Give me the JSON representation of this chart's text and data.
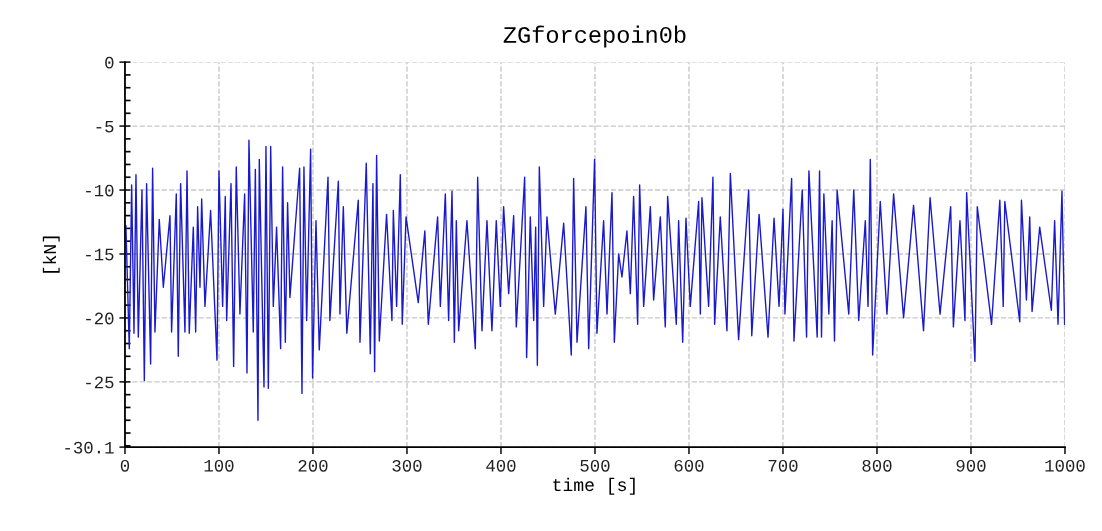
{
  "chart_data": {
    "type": "line",
    "title": "ZGforcepoin0b",
    "xlabel": "time [s]",
    "ylabel": "[kN]",
    "xlim": [
      0,
      1000
    ],
    "xticks": [
      0,
      100,
      200,
      300,
      400,
      500,
      600,
      700,
      800,
      900,
      1000
    ],
    "ylim": [
      -30.1,
      0
    ],
    "yticks": [
      0,
      -5,
      -10,
      -15,
      -20,
      -25,
      -30.1
    ],
    "grid": true,
    "marker": "none",
    "line_style": "solid",
    "series": [
      {
        "color": "#1a1acc",
        "x": [
          1,
          4.6,
          7.1,
          9.6,
          11.7,
          14.2,
          18.1,
          20.6,
          23,
          27.3,
          29.4,
          31.9,
          36.5,
          40.8,
          47.9,
          49.6,
          54.6,
          56.7,
          59.2,
          63.8,
          66,
          68.4,
          72.7,
          75.2,
          77.3,
          79.8,
          81.6,
          85.1,
          91.1,
          97.9,
          100,
          103.9,
          106.7,
          108.2,
          112.8,
          115.6,
          118.4,
          122.3,
          127.3,
          129.8,
          131.9,
          136.5,
          138.7,
          141.5,
          142.9,
          147.9,
          150,
          152.5,
          155,
          157.8,
          161.3,
          165.6,
          167.7,
          170.6,
          173,
          175.5,
          185.8,
          188.3,
          190.4,
          193.3,
          197.5,
          199.6,
          203.2,
          206.7,
          216,
          218,
          227,
          228.7,
          232.3,
          236,
          248.2,
          250,
          256.7,
          261,
          263.8,
          265.6,
          267.7,
          270.6,
          278.3,
          284,
          285.5,
          289,
          292.9,
          295,
          299,
          312,
          319,
          322.7,
          332.6,
          335.5,
          340.8,
          344.3,
          347.9,
          350.4,
          352.5,
          355,
          363.8,
          372.7,
          375.2,
          379.8,
          385.1,
          390.4,
          395,
          399.3,
          402.8,
          408.2,
          413.5,
          416.3,
          425.2,
          427.3,
          431.2,
          434.8,
          436.9,
          438.7,
          440.8,
          445.4,
          448.9,
          457.8,
          466.7,
          474.8,
          477.3,
          480.9,
          490.4,
          493.3,
          499.6,
          502.1,
          509.2,
          512.8,
          518.1,
          520.6,
          525.2,
          528.7,
          534,
          537.6,
          541.1,
          545.4,
          547.5,
          551.8,
          558.9,
          562.4,
          569.5,
          574.8,
          577.3,
          586.5,
          589,
          593.3,
          596.8,
          601.4,
          610.3,
          612.1,
          613.8,
          620.9,
          625.5,
          627.3,
          633.3,
          640.4,
          644,
          652.8,
          663.5,
          666.8,
          674.6,
          684.1,
          690.5,
          695.8,
          700,
          702.1,
          709.2,
          711.7,
          720.5,
          725.1,
          727.6,
          736.4,
          738.9,
          741,
          743.5,
          748.8,
          752.3,
          754.8,
          757.6,
          770,
          775.3,
          780.6,
          787.6,
          790.5,
          792.9,
          795.4,
          803.5,
          810.6,
          817.7,
          828.3,
          838.9,
          849.5,
          856.5,
          867.1,
          878.4,
          881.3,
          888.3,
          893.6,
          895.4,
          904.2,
          906.7,
          921.9,
          930.7,
          934.3,
          936,
          951.9,
          953.7,
          959,
          962.5,
          965,
          973.1,
          985.5,
          989,
          992.6,
          996.8,
          999.6
        ],
        "values": [
          -12.8,
          -22.4,
          -9.6,
          -21.2,
          -8.8,
          -21.5,
          -10,
          -24.9,
          -9.5,
          -23.6,
          -8.3,
          -21.1,
          -12.3,
          -17.6,
          -12,
          -21.1,
          -10.3,
          -23,
          -9.5,
          -21.1,
          -8.5,
          -21.2,
          -12.9,
          -21.1,
          -11.3,
          -17.6,
          -10.7,
          -19.1,
          -11.6,
          -23.3,
          -8.5,
          -19.1,
          -10.5,
          -20.2,
          -9.5,
          -23.8,
          -8.2,
          -19.7,
          -10.3,
          -24.3,
          -6.1,
          -21.1,
          -8.4,
          -28,
          -7.6,
          -25.4,
          -6.6,
          -25.5,
          -6.6,
          -19.1,
          -12.9,
          -22.4,
          -8.2,
          -21.9,
          -11,
          -18.4,
          -8.3,
          -25.9,
          -8.2,
          -20.2,
          -6.8,
          -24.7,
          -12.4,
          -22.5,
          -9,
          -20.2,
          -9.3,
          -19.7,
          -11.3,
          -21.2,
          -10.8,
          -21.9,
          -7.9,
          -22.8,
          -9.5,
          -24.2,
          -7.3,
          -21.8,
          -11.9,
          -20.2,
          -11.6,
          -19.1,
          -8.8,
          -20.5,
          -12.1,
          -18.8,
          -13.2,
          -20.5,
          -12.1,
          -19.1,
          -10.3,
          -20.2,
          -10.1,
          -21.9,
          -12.4,
          -21,
          -12.4,
          -22.4,
          -9,
          -21,
          -12.4,
          -21,
          -12.4,
          -19.1,
          -11.3,
          -18.1,
          -12,
          -20.7,
          -9,
          -23.1,
          -12.1,
          -20.2,
          -12.9,
          -23.7,
          -8.2,
          -19.1,
          -12.1,
          -19.7,
          -12.6,
          -22.9,
          -9.1,
          -21.9,
          -11.3,
          -22.4,
          -7.6,
          -21.2,
          -12.4,
          -19.7,
          -10.2,
          -21.9,
          -15,
          -16.8,
          -13.2,
          -18.1,
          -10.5,
          -20.5,
          -9.6,
          -19.1,
          -11.3,
          -18.6,
          -12.1,
          -20.7,
          -10.5,
          -20.5,
          -12.4,
          -21.9,
          -12.2,
          -19.1,
          -10.9,
          -19.7,
          -10.6,
          -19.1,
          -9,
          -20.5,
          -12.1,
          -21,
          -8.7,
          -21.7,
          -10,
          -21.4,
          -11.9,
          -21.5,
          -12.2,
          -19.1,
          -11.5,
          -19.7,
          -9.1,
          -21.8,
          -10,
          -21.5,
          -8.5,
          -21.5,
          -8.5,
          -21.5,
          -10.3,
          -19.7,
          -12.4,
          -21.8,
          -10,
          -19.7,
          -10,
          -20.2,
          -12.4,
          -19.1,
          -7.6,
          -22.9,
          -10.9,
          -19.7,
          -10.3,
          -20,
          -11.2,
          -21,
          -10.6,
          -19.7,
          -11.3,
          -20.7,
          -12.4,
          -20.2,
          -10.2,
          -23.4,
          -11.3,
          -20.5,
          -10.8,
          -19.1,
          -10.9,
          -20.3,
          -10.8,
          -18.6,
          -12.1,
          -19.5,
          -12.9,
          -19.4,
          -12.4,
          -20.5,
          -10.1,
          -20.5
        ]
      }
    ]
  }
}
